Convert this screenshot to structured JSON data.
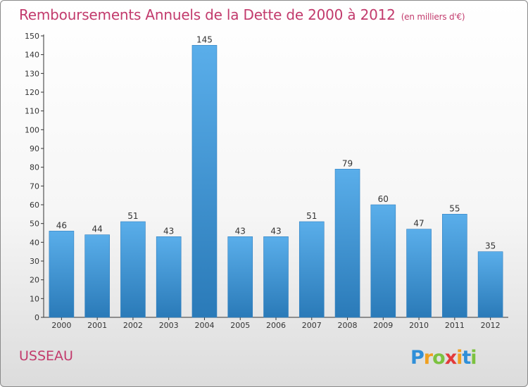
{
  "title": "Remboursements Annuels de la Dette de 2000 à 2012",
  "subtitle": "(en milliers d'€)",
  "commune": "USSEAU",
  "brand": "Proxiti",
  "colors": {
    "title": "#c23a6c",
    "bar_top": "#5aaeea",
    "bar_bottom": "#2a7ab8"
  },
  "chart_data": {
    "type": "bar",
    "title": "Remboursements Annuels de la Dette de 2000 à 2012",
    "subtitle": "(en milliers d'€)",
    "categories": [
      "2000",
      "2001",
      "2002",
      "2003",
      "2004",
      "2005",
      "2006",
      "2007",
      "2008",
      "2009",
      "2010",
      "2011",
      "2012"
    ],
    "values": [
      46,
      44,
      51,
      43,
      145,
      43,
      43,
      51,
      79,
      60,
      47,
      55,
      35
    ],
    "ylim": [
      0,
      150
    ],
    "yticks": [
      0,
      10,
      20,
      30,
      40,
      50,
      60,
      70,
      80,
      90,
      100,
      110,
      120,
      130,
      140,
      150
    ],
    "grid": false,
    "data_labels": true
  }
}
